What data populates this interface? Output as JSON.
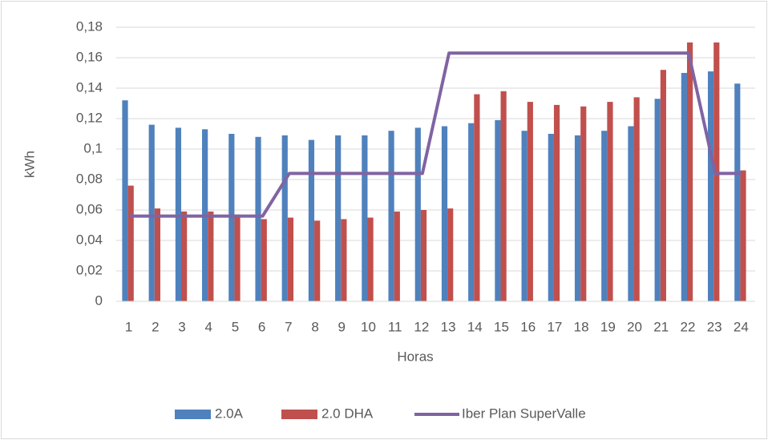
{
  "chart_data": {
    "type": "bar-line",
    "categories": [
      "1",
      "2",
      "3",
      "4",
      "5",
      "6",
      "7",
      "8",
      "9",
      "10",
      "11",
      "12",
      "13",
      "14",
      "15",
      "16",
      "17",
      "18",
      "19",
      "20",
      "21",
      "22",
      "23",
      "24"
    ],
    "series": [
      {
        "name": "2.0A",
        "color": "#4f81bd",
        "type": "bar",
        "values": [
          0.132,
          0.116,
          0.114,
          0.113,
          0.11,
          0.108,
          0.109,
          0.106,
          0.109,
          0.109,
          0.112,
          0.114,
          0.115,
          0.117,
          0.119,
          0.112,
          0.11,
          0.109,
          0.112,
          0.115,
          0.133,
          0.15,
          0.151,
          0.143
        ]
      },
      {
        "name": "2.0 DHA",
        "color": "#c0504d",
        "type": "bar",
        "values": [
          0.076,
          0.061,
          0.059,
          0.059,
          0.057,
          0.054,
          0.055,
          0.053,
          0.054,
          0.055,
          0.059,
          0.06,
          0.061,
          0.136,
          0.138,
          0.131,
          0.129,
          0.128,
          0.131,
          0.134,
          0.152,
          0.17,
          0.17,
          0.086
        ]
      },
      {
        "name": "Iber Plan SuperValle",
        "color": "#8064a2",
        "type": "line",
        "values": [
          0.056,
          0.056,
          0.056,
          0.056,
          0.056,
          0.056,
          0.084,
          0.084,
          0.084,
          0.084,
          0.084,
          0.084,
          0.163,
          0.163,
          0.163,
          0.163,
          0.163,
          0.163,
          0.163,
          0.163,
          0.163,
          0.163,
          0.084,
          0.084
        ]
      }
    ],
    "xlabel": "Horas",
    "ylabel": "kWh",
    "ylim": [
      0,
      0.18
    ],
    "yticks": [
      0,
      {
        "value": 0.02,
        "label": "0,02"
      },
      {
        "value": 0.04,
        "label": "0,04"
      },
      {
        "value": 0.06,
        "label": "0,06"
      },
      {
        "value": 0.08,
        "label": "0,08"
      },
      {
        "value": 0.1,
        "label": "0,1"
      },
      {
        "value": 0.12,
        "label": "0,12"
      },
      {
        "value": 0.14,
        "label": "0,14"
      },
      {
        "value": 0.16,
        "label": "0,16"
      },
      {
        "value": 0.18,
        "label": "0,18"
      }
    ],
    "grid": true,
    "legend": "bottom"
  }
}
